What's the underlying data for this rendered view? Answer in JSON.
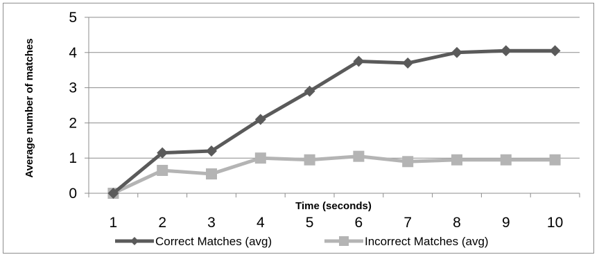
{
  "chart_data": {
    "type": "line",
    "title": "",
    "xlabel": "Time (seconds)",
    "ylabel": "Average number of matches",
    "x": [
      1,
      2,
      3,
      4,
      5,
      6,
      7,
      8,
      9,
      10
    ],
    "ylim": [
      0,
      5
    ],
    "yticks": [
      0,
      1,
      2,
      3,
      4,
      5
    ],
    "grid": true,
    "legend_position": "bottom",
    "series": [
      {
        "name": "Correct Matches (avg)",
        "values": [
          0,
          1.15,
          1.2,
          2.1,
          2.9,
          3.75,
          3.7,
          4.0,
          4.05,
          4.05
        ],
        "color": "#5a5a5a",
        "marker": "diamond"
      },
      {
        "name": "Incorrect Matches (avg)",
        "values": [
          0,
          0.65,
          0.55,
          1.0,
          0.95,
          1.05,
          0.9,
          0.95,
          0.95,
          0.95
        ],
        "color": "#b4b4b4",
        "marker": "square"
      }
    ]
  }
}
